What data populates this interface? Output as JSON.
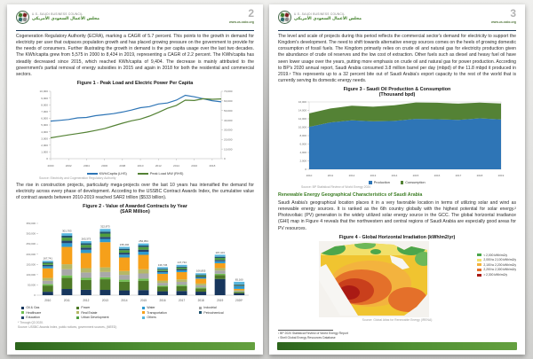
{
  "theme": {
    "accent_green": "#3b7d23",
    "header_rule_navy": "#1b3a5c",
    "footer_band_green": "#3f7d2c",
    "line_blue": "#2e75b6",
    "line_green": "#548235"
  },
  "logo": {
    "org_line1": "U.S.-SAUDI BUSINESS COUNCIL",
    "org_line2": "مجلس الأعمال السعودي الأمريكي"
  },
  "left": {
    "page_number": "2",
    "website": "www.us-sabc.org",
    "para1": "Cogeneration Regulatory Authority (ECRA), marking a CAGR of 5.7 percent. This points to the growth in demand for electricity per user that outpaces population growth and has placed growing pressure on the government to provide for the needs of consumers. Further illustrating the growth in demand is the per capita usage over the last two decades. The KWh/capita grew from 5,575 in 2000 to 8,434 in 2019, representing a CAGR of 2.2 percent. The KWh/capita has steadily decreased since 2015, which reached KWh/capita of 9,404. The decrease is mainly attributed to the government's partial removal of energy subsidies in 2015 and again in 2018 for both the residential and commercial sectors.",
    "para2": "The rise in construction projects, particularly mega-projects over the last 10 years has intensified the demand for electricity across every phase of development. According to the USSBC Contract Awards Index, the cumulative value of contract awards between 2010-2019 reached SAR2 trillion ($533 billion)."
  },
  "right": {
    "page_number": "3",
    "website": "www.us-sabc.org",
    "para1": "The level and scale of projects during this period reflects the commercial sector's demand for electricity to support the Kingdom's development. The need to shift towards alternative energy sources comes on the heels of growing domestic consumption of fossil fuels. The Kingdom primarily relies on crude oil and natural gas for electricity production given the abundance of crude oil reserves and the low cost of extraction. Other fuels such as diesel and heavy fuel oil have seen lower usage over the years, putting more emphasis on crude oil and natural gas for power production. According to BP's 2020 annual report, Saudi Arabia consumed 3.8 million barrel per day (mbpd) of the 11.8 mbpd it produced in 2019.¹ This represents up to a 32 percent bite out of Saudi Arabia's export capacity to the rest of the world that is currently serving its domestic energy needs.",
    "heading": "Renewable Energy Geographical Characteristics of Saudi Arabia",
    "para2": "Saudi Arabia's geographical location places it in a very favorable location in terms of utilizing solar and wind as renewable energy sources. It is ranked as the 6th country globally with the highest potential for solar energy.² Photovoltaic (PV) generation is the widely utilized solar energy source in the GCC. The global horizontal irradiance (GHI) map in Figure 4 reveals that the northwestern and central regions of Saudi Arabia are especially good areas for PV resources.",
    "footnote1": "¹ BP 2020 Statistical Review of World Energy Report",
    "footnote2": "² Shell Global Energy Resources Database"
  },
  "chart_data": [
    {
      "id": "figure1",
      "type": "line",
      "title": "Figure 1 - Peak Load and Electric Power Per Capita",
      "x": [
        2000,
        2001,
        2002,
        2003,
        2004,
        2005,
        2006,
        2007,
        2008,
        2009,
        2010,
        2011,
        2012,
        2013,
        2014,
        2015,
        2016,
        2017,
        2018,
        2019
      ],
      "x_ticks": [
        2000,
        2002,
        2004,
        2006,
        2008,
        2010,
        2012,
        2014,
        2016,
        2018
      ],
      "series": [
        {
          "name": "KWh/Capita (LHS)",
          "color": "#2e75b6",
          "axis": "left",
          "values": [
            5575,
            5680,
            5820,
            6050,
            6120,
            6380,
            6520,
            6680,
            6920,
            7210,
            7560,
            7720,
            8120,
            8260,
            8690,
            9404,
            9180,
            8890,
            8600,
            8434
          ]
        },
        {
          "name": "Peak Load MW (RHS)",
          "color": "#548235",
          "axis": "right",
          "values": [
            21673,
            23200,
            24700,
            26100,
            27500,
            29300,
            31200,
            34100,
            36800,
            39300,
            41200,
            44200,
            48100,
            52300,
            55400,
            60800,
            60400,
            62260,
            61700,
            62100
          ]
        }
      ],
      "left_axis": {
        "min": 0,
        "max": 10000,
        "step": 1000
      },
      "right_axis": {
        "min": 0,
        "max": 70000,
        "step": 10000
      },
      "legend_position": "bottom",
      "grid": false,
      "source": "Source: Electricity and Cogeneration Regulatory Authority"
    },
    {
      "id": "figure2",
      "type": "bar",
      "title_line1": "Figure 2 - Value of Awarded Contracts by Year",
      "title_line2": "(SAR Million)",
      "categories": [
        "2010",
        "2011",
        "2012",
        "2013",
        "2014",
        "2015",
        "2016",
        "2017",
        "2018",
        "2019",
        "2020*"
      ],
      "totals": [
        167741,
        301703,
        263373,
        322873,
        235402,
        252054,
        136745,
        147734,
        106855,
        197103,
        65160
      ],
      "ylim": [
        0,
        350000
      ],
      "y_step": 50000,
      "sectors": [
        {
          "name": "Oil & Gas",
          "color": "#17365d"
        },
        {
          "name": "Power",
          "color": "#4e7a27"
        },
        {
          "name": "Water",
          "color": "#2e9ad0"
        },
        {
          "name": "Industrial",
          "color": "#a8a8a8"
        },
        {
          "name": "Healthcare",
          "color": "#70c050"
        },
        {
          "name": "Real Estate",
          "color": "#b5b867"
        },
        {
          "name": "Transportation",
          "color": "#f6a01a"
        },
        {
          "name": "Petrochemical",
          "color": "#20546e"
        },
        {
          "name": "Education",
          "color": "#26456e"
        },
        {
          "name": "Urban Development",
          "color": "#4f9e3f"
        },
        {
          "name": "Others",
          "color": "#58b6dd"
        }
      ],
      "stack_order": [
        0,
        1,
        4,
        3,
        5,
        6,
        2,
        8,
        9,
        7,
        10
      ],
      "shares": [
        [
          0.1,
          0.18,
          0.06,
          0.1,
          0.04,
          0.08,
          0.28,
          0.03,
          0.04,
          0.05,
          0.04
        ],
        [
          0.1,
          0.18,
          0.06,
          0.1,
          0.04,
          0.08,
          0.28,
          0.03,
          0.04,
          0.05,
          0.04
        ],
        [
          0.1,
          0.18,
          0.06,
          0.1,
          0.04,
          0.08,
          0.28,
          0.03,
          0.04,
          0.05,
          0.04
        ],
        [
          0.08,
          0.16,
          0.05,
          0.08,
          0.03,
          0.07,
          0.38,
          0.03,
          0.03,
          0.05,
          0.04
        ],
        [
          0.1,
          0.18,
          0.06,
          0.1,
          0.04,
          0.08,
          0.28,
          0.03,
          0.04,
          0.05,
          0.04
        ],
        [
          0.1,
          0.18,
          0.06,
          0.1,
          0.04,
          0.08,
          0.28,
          0.03,
          0.04,
          0.05,
          0.04
        ],
        [
          0.14,
          0.16,
          0.06,
          0.1,
          0.04,
          0.08,
          0.24,
          0.03,
          0.04,
          0.05,
          0.06
        ],
        [
          0.14,
          0.16,
          0.06,
          0.1,
          0.04,
          0.08,
          0.24,
          0.03,
          0.04,
          0.05,
          0.06
        ],
        [
          0.16,
          0.15,
          0.06,
          0.1,
          0.04,
          0.08,
          0.22,
          0.03,
          0.04,
          0.05,
          0.07
        ],
        [
          0.4,
          0.1,
          0.05,
          0.08,
          0.03,
          0.06,
          0.12,
          0.03,
          0.03,
          0.05,
          0.05
        ],
        [
          0.15,
          0.08,
          0.2,
          0.06,
          0.03,
          0.05,
          0.1,
          0.05,
          0.04,
          0.04,
          0.2
        ]
      ],
      "legend_position": "bottom",
      "grid": false,
      "footnote": "* Through Q3 2020.",
      "source": "Source: USSBC Awards Index, public notices, government sources, (MEED)"
    },
    {
      "id": "figure3",
      "type": "area",
      "title_line1": "Figure 3 - Saudi Oil Production & Consumption",
      "title_line2": "(Thousand bpd)",
      "x": [
        2010,
        2011,
        2012,
        2013,
        2014,
        2015,
        2016,
        2017,
        2018,
        2019
      ],
      "series": [
        {
          "name": "Production",
          "color": "#2e75b6",
          "values": [
            10075,
            11144,
            11635,
            11393,
            11505,
            11986,
            11900,
            11750,
            12100,
            11832
          ]
        },
        {
          "name": "Consumption",
          "color": "#548235",
          "values": [
            3208,
            3295,
            3460,
            3472,
            3712,
            3892,
            3906,
            3854,
            3724,
            3788
          ]
        }
      ],
      "ylim": [
        0,
        16000
      ],
      "y_step": 2000,
      "legend_position": "bottom",
      "grid": false,
      "source": "Source: BP Statistical Review of World Energy 2020"
    },
    {
      "id": "figure4",
      "type": "heatmap",
      "title": "Figure 4 - Global Horizontal Irradiation (kWh/m2/yr)",
      "legend": [
        {
          "label": "< 2,000 kWh/m2/y",
          "color": "#4ca64c"
        },
        {
          "label": "2,000 to 2,100 kWh/m2/y",
          "color": "#f2e06a"
        },
        {
          "label": "2,100 to 2,200 kWh/m2/y",
          "color": "#f3b33e"
        },
        {
          "label": "2,200 to 2,300 kWh/m2/y",
          "color": "#e4702a"
        },
        {
          "label": "> 2,300 kWh/m2/y",
          "color": "#aa1a14"
        },
        {
          "note": "high GHI regions: northwestern and central Saudi Arabia"
        }
      ],
      "source": "Source: Global Atlas for Renewable Energy (IRENA)"
    }
  ]
}
